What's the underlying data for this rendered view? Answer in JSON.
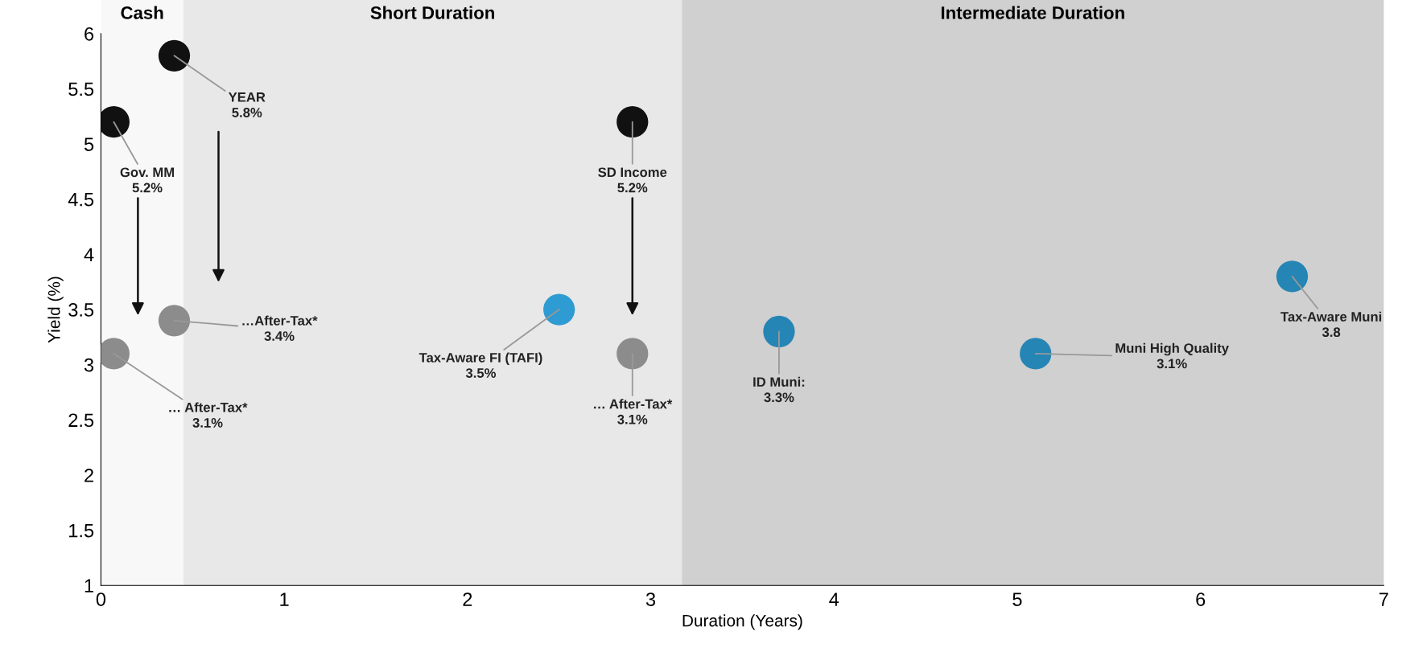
{
  "chart_data": {
    "type": "scatter",
    "xlabel": "Duration (Years)",
    "ylabel": "Yield (%)",
    "xlim": [
      0,
      7
    ],
    "ylim": [
      1,
      6
    ],
    "xticks": [
      0,
      1,
      2,
      3,
      4,
      5,
      6,
      7
    ],
    "yticks": [
      1,
      1.5,
      2,
      2.5,
      3,
      3.5,
      4,
      4.5,
      5,
      5.5,
      6
    ],
    "grid": false,
    "marker": "circle",
    "series": [
      {
        "color": "#111111",
        "x": [
          0.07,
          0.4,
          2.9
        ],
        "values": [
          5.2,
          5.8,
          5.2
        ]
      },
      {
        "color": "#8c8c8c",
        "x": [
          0.07,
          0.4,
          2.9
        ],
        "values": [
          3.1,
          3.4,
          3.1
        ]
      },
      {
        "color": "#2e9bd2",
        "x": [
          2.5
        ],
        "values": [
          3.5
        ]
      },
      {
        "color": "#2585b5",
        "x": [
          3.7,
          5.1,
          6.5
        ],
        "values": [
          3.3,
          3.1,
          3.8
        ]
      }
    ],
    "bands": [
      {
        "axis": "x",
        "from": 0,
        "to": 0.45,
        "label": "Cash",
        "color": "#f8f8f8"
      },
      {
        "axis": "x",
        "from": 0.45,
        "to": 3.17,
        "label": "Short Duration",
        "color": "#e8e8e8"
      },
      {
        "axis": "x",
        "from": 3.17,
        "to": 7,
        "label": "Intermediate Duration",
        "color": "#d0d0d0"
      }
    ],
    "annotations": [
      {
        "text": "Gov. MM\n5.2%",
        "x": 0.07,
        "y": 5.2
      },
      {
        "text": "YEAR\n5.8%",
        "x": 0.4,
        "y": 5.8
      },
      {
        "text": "SD Income\n5.2%",
        "x": 2.9,
        "y": 5.2
      },
      {
        "text": "… After-Tax*\n3.1%",
        "x": 0.07,
        "y": 3.1
      },
      {
        "text": "…After-Tax*\n3.4%",
        "x": 0.4,
        "y": 3.4
      },
      {
        "text": "… After-Tax*\n3.1%",
        "x": 2.9,
        "y": 3.1
      },
      {
        "text": "Tax-Aware FI (TAFI)\n3.5%",
        "x": 2.5,
        "y": 3.5
      },
      {
        "text": "ID Muni:\n3.3%",
        "x": 3.7,
        "y": 3.3
      },
      {
        "text": "Muni High Quality\n3.1%",
        "x": 5.1,
        "y": 3.1
      },
      {
        "text": "Tax-Aware Muni\n3.8",
        "x": 6.5,
        "y": 3.8
      }
    ]
  }
}
